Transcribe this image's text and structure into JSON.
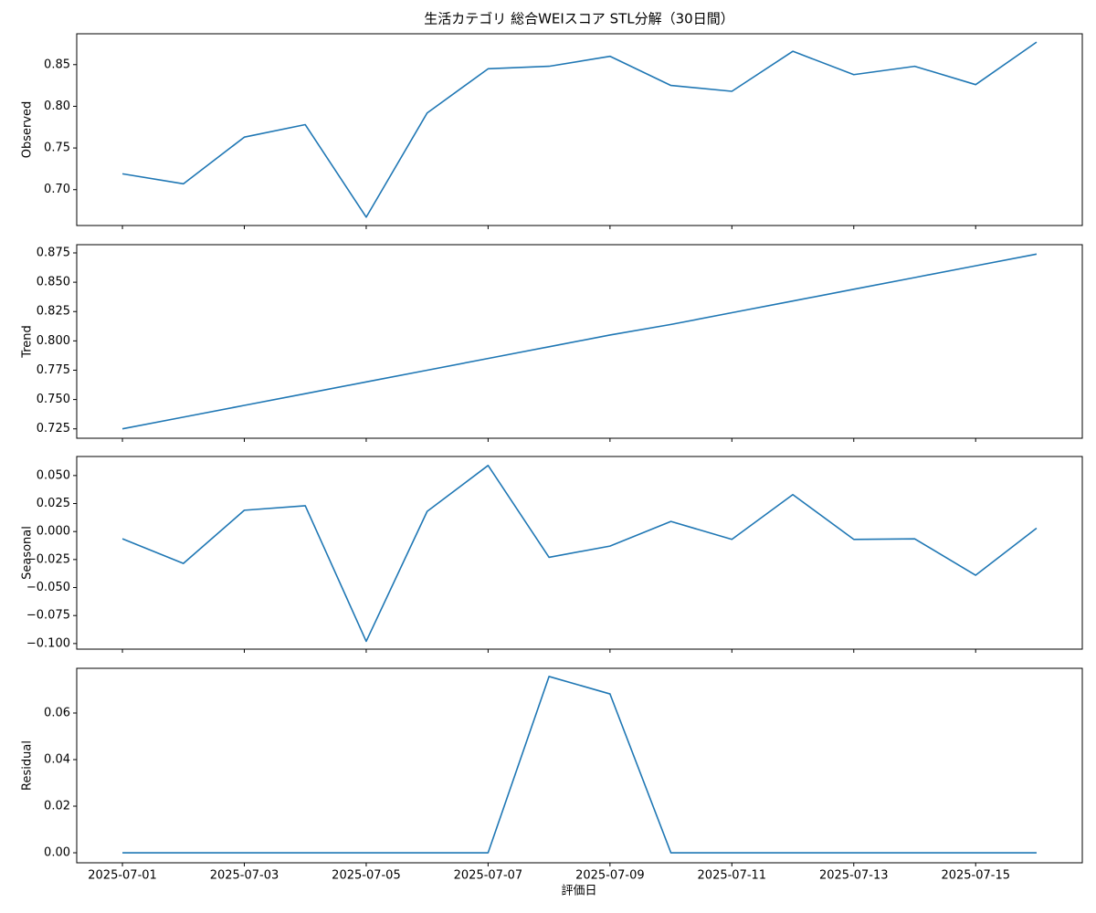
{
  "chart_data": [
    {
      "type": "line",
      "title": "生活カテゴリ 総合WEIスコア STL分解（30日間）",
      "ylabel": "Observed",
      "color": "#1f77b4",
      "x": [
        "2025-07-01",
        "2025-07-02",
        "2025-07-03",
        "2025-07-04",
        "2025-07-05",
        "2025-07-06",
        "2025-07-07",
        "2025-07-08",
        "2025-07-09",
        "2025-07-10",
        "2025-07-11",
        "2025-07-12",
        "2025-07-13",
        "2025-07-14",
        "2025-07-15",
        "2025-07-16"
      ],
      "values": [
        0.719,
        0.707,
        0.763,
        0.778,
        0.667,
        0.792,
        0.845,
        0.848,
        0.86,
        0.825,
        0.818,
        0.866,
        0.838,
        0.848,
        0.826,
        0.877
      ],
      "xlim": [
        "2025-06-30T06:00",
        "2025-07-16T18:00"
      ],
      "ylim": [
        0.657,
        0.887
      ],
      "yticks": [
        {
          "value": 0.7,
          "label": "0.70"
        },
        0.75,
        {
          "value": 0.8,
          "label": "0.80"
        },
        0.85
      ]
    },
    {
      "type": "line",
      "ylabel": "Trend",
      "color": "#1f77b4",
      "x": [
        "2025-07-01",
        "2025-07-02",
        "2025-07-03",
        "2025-07-04",
        "2025-07-05",
        "2025-07-06",
        "2025-07-07",
        "2025-07-08",
        "2025-07-09",
        "2025-07-10",
        "2025-07-11",
        "2025-07-12",
        "2025-07-13",
        "2025-07-14",
        "2025-07-15",
        "2025-07-16"
      ],
      "values": [
        0.725,
        0.735,
        0.745,
        0.755,
        0.765,
        0.775,
        0.785,
        0.795,
        0.805,
        0.814,
        0.824,
        0.834,
        0.844,
        0.854,
        0.864,
        0.874
      ],
      "xlim": [
        "2025-06-30T06:00",
        "2025-07-16T18:00"
      ],
      "ylim": [
        0.717,
        0.882
      ],
      "yticks": [
        0.725,
        {
          "value": 0.75,
          "label": "0.750"
        },
        0.775,
        {
          "value": 0.8,
          "label": "0.800"
        },
        0.825,
        {
          "value": 0.85,
          "label": "0.850"
        },
        0.875
      ]
    },
    {
      "type": "line",
      "ylabel": "Seasonal",
      "color": "#1f77b4",
      "x": [
        "2025-07-01",
        "2025-07-02",
        "2025-07-03",
        "2025-07-04",
        "2025-07-05",
        "2025-07-06",
        "2025-07-07",
        "2025-07-08",
        "2025-07-09",
        "2025-07-10",
        "2025-07-11",
        "2025-07-12",
        "2025-07-13",
        "2025-07-14",
        "2025-07-15",
        "2025-07-16"
      ],
      "values": [
        -0.0065,
        -0.0285,
        0.019,
        0.023,
        -0.098,
        0.018,
        0.059,
        -0.023,
        -0.013,
        0.009,
        -0.007,
        0.033,
        -0.007,
        -0.0065,
        -0.039,
        0.003
      ],
      "xlim": [
        "2025-06-30T06:00",
        "2025-07-16T18:00"
      ],
      "ylim": [
        -0.105,
        0.067
      ],
      "yticks": [
        {
          "value": -0.1,
          "label": "−0.100"
        },
        {
          "value": -0.075,
          "label": "−0.075"
        },
        {
          "value": -0.05,
          "label": "−0.050"
        },
        {
          "value": -0.025,
          "label": "−0.025"
        },
        {
          "value": 0,
          "label": "0.000"
        },
        0.025,
        {
          "value": 0.05,
          "label": "0.050"
        }
      ]
    },
    {
      "type": "line",
      "ylabel": "Residual",
      "xlabel": "評価日",
      "color": "#1f77b4",
      "x": [
        "2025-07-01",
        "2025-07-02",
        "2025-07-03",
        "2025-07-04",
        "2025-07-05",
        "2025-07-06",
        "2025-07-07",
        "2025-07-08",
        "2025-07-09",
        "2025-07-10",
        "2025-07-11",
        "2025-07-12",
        "2025-07-13",
        "2025-07-14",
        "2025-07-15",
        "2025-07-16"
      ],
      "values": [
        0,
        0,
        0,
        0,
        0,
        0,
        0,
        0.0757,
        0.0682,
        0,
        0,
        0,
        0,
        0,
        0,
        0
      ],
      "xlim": [
        "2025-06-30T06:00",
        "2025-07-16T18:00"
      ],
      "ylim": [
        -0.0043,
        0.0792
      ],
      "yticks": [
        {
          "value": 0,
          "label": "0.00"
        },
        {
          "value": 0.02,
          "label": "0.02"
        },
        {
          "value": 0.04,
          "label": "0.04"
        },
        {
          "value": 0.06,
          "label": "0.06"
        }
      ],
      "xticks": [
        "2025-07-01",
        "2025-07-03",
        "2025-07-05",
        "2025-07-07",
        "2025-07-09",
        "2025-07-11",
        "2025-07-13",
        "2025-07-15"
      ]
    }
  ]
}
